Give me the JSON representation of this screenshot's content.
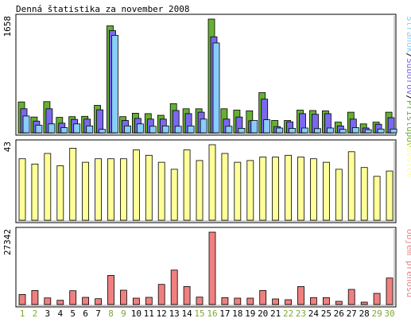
{
  "chart_data": {
    "type": "bar",
    "title": "Denná štatistika za november 2008",
    "x": [
      "1",
      "2",
      "3",
      "4",
      "5",
      "6",
      "7",
      "8",
      "9",
      "10",
      "11",
      "12",
      "13",
      "14",
      "15",
      "16",
      "17",
      "18",
      "19",
      "20",
      "21",
      "22",
      "23",
      "24",
      "25",
      "26",
      "27",
      "28",
      "29",
      "30"
    ],
    "weekend_days": [
      "1",
      "2",
      "8",
      "9",
      "15",
      "16",
      "22",
      "23",
      "29",
      "30"
    ],
    "colors": {
      "hits": "#66b032",
      "files": "#7b68ee",
      "pages": "#87cefa",
      "visits": "#ffff99",
      "transfer": "#f08080",
      "weekend": "#7ca830",
      "weekday": "#000000"
    },
    "panels": [
      {
        "id": "hits",
        "max_label": "1658",
        "legend": [
          {
            "key": "pages",
            "label": "Stránok"
          },
          {
            "key": "files",
            "label": "Súborov"
          },
          {
            "key": "hits",
            "label": "Prístupov"
          }
        ],
        "ylim": [
          0,
          1658
        ],
        "series": [
          {
            "key": "hits",
            "values": [
              450,
              230,
              455,
              225,
              235,
              240,
              400,
              1560,
              235,
              285,
              280,
              255,
              425,
              350,
              350,
              1658,
              350,
              330,
              320,
              585,
              180,
              180,
              330,
              325,
              320,
              155,
              300,
              130,
              155,
              300
            ]
          },
          {
            "key": "files",
            "values": [
              350,
              170,
              350,
              140,
              195,
              200,
              335,
              1490,
              180,
              210,
              200,
              200,
              325,
              280,
              300,
              1400,
              200,
              230,
              175,
              490,
              90,
              160,
              280,
              270,
              280,
              100,
              200,
              70,
              125,
              220
            ]
          },
          {
            "key": "pages",
            "values": [
              245,
              110,
              130,
              75,
              130,
              100,
              50,
              1420,
              100,
              130,
              95,
              100,
              95,
              100,
              200,
              1310,
              95,
              65,
              180,
              190,
              70,
              65,
              70,
              60,
              70,
              50,
              75,
              45,
              55,
              55
            ]
          }
        ]
      },
      {
        "id": "visits",
        "max_label": "43",
        "legend": [
          {
            "key": "visits",
            "label": "Návštev"
          }
        ],
        "ylim": [
          0,
          43
        ],
        "series": [
          {
            "key": "visits",
            "values": [
              35,
              32,
              38,
              31,
              41,
              33,
              35,
              35,
              35,
              40,
              37,
              33,
              29,
              40,
              34,
              43,
              38,
              33,
              34,
              36,
              36,
              37,
              36,
              35,
              33,
              29,
              39,
              30,
              25,
              28
            ]
          }
        ]
      },
      {
        "id": "transfer",
        "max_label": "27342",
        "legend": [
          {
            "key": "transfer",
            "label": "Objem prenosu"
          }
        ],
        "ylim": [
          0,
          27342
        ],
        "series": [
          {
            "key": "transfer",
            "values": [
              3800,
              5300,
              2500,
              1600,
              5200,
              2700,
              2200,
              11000,
              5400,
              2400,
              2700,
              7600,
              13000,
              6800,
              2800,
              27342,
              2600,
              2400,
              2400,
              5300,
              2100,
              1800,
              6800,
              2600,
              2600,
              1200,
              5700,
              900,
              4200,
              10000
            ]
          }
        ]
      }
    ]
  }
}
